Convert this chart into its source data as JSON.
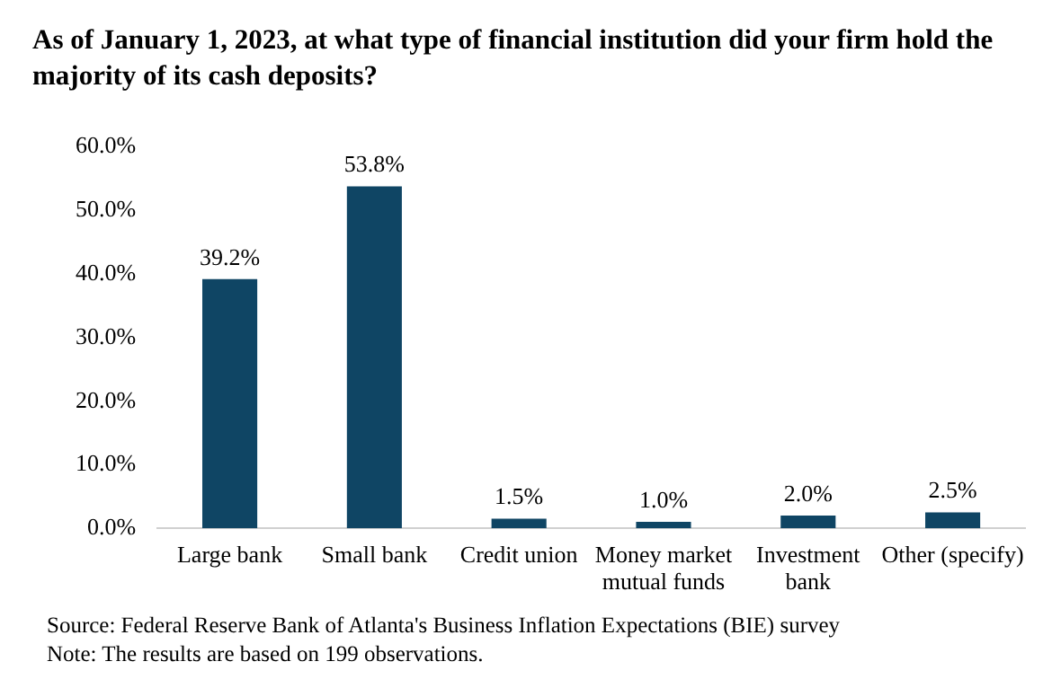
{
  "chart_data": {
    "type": "bar",
    "title": "As of January 1, 2023, at what type of financial institution did your firm hold the majority of its cash deposits?",
    "categories": [
      "Large bank",
      "Small bank",
      "Credit union",
      "Money market mutual funds",
      "Investment bank",
      "Other (specify)"
    ],
    "values": [
      39.2,
      53.8,
      1.5,
      1.0,
      2.0,
      2.5
    ],
    "value_labels": [
      "39.2%",
      "53.8%",
      "1.5%",
      "1.0%",
      "2.0%",
      "2.5%"
    ],
    "color": "#0f4564",
    "ylim": [
      0,
      60
    ],
    "yticks": [
      {
        "value": 0,
        "label": "0.0%"
      },
      {
        "value": 10,
        "label": "10.0%"
      },
      {
        "value": 20,
        "label": "20.0%"
      },
      {
        "value": 30,
        "label": "30.0%"
      },
      {
        "value": 40,
        "label": "40.0%"
      },
      {
        "value": 50,
        "label": "50.0%"
      },
      {
        "value": 60,
        "label": "60.0%"
      }
    ],
    "grid": false,
    "annotations": [
      "Source: Federal Reserve Bank of Atlanta's Business Inflation Expectations (BIE) survey",
      "Note: The results are based on 199 observations."
    ]
  }
}
